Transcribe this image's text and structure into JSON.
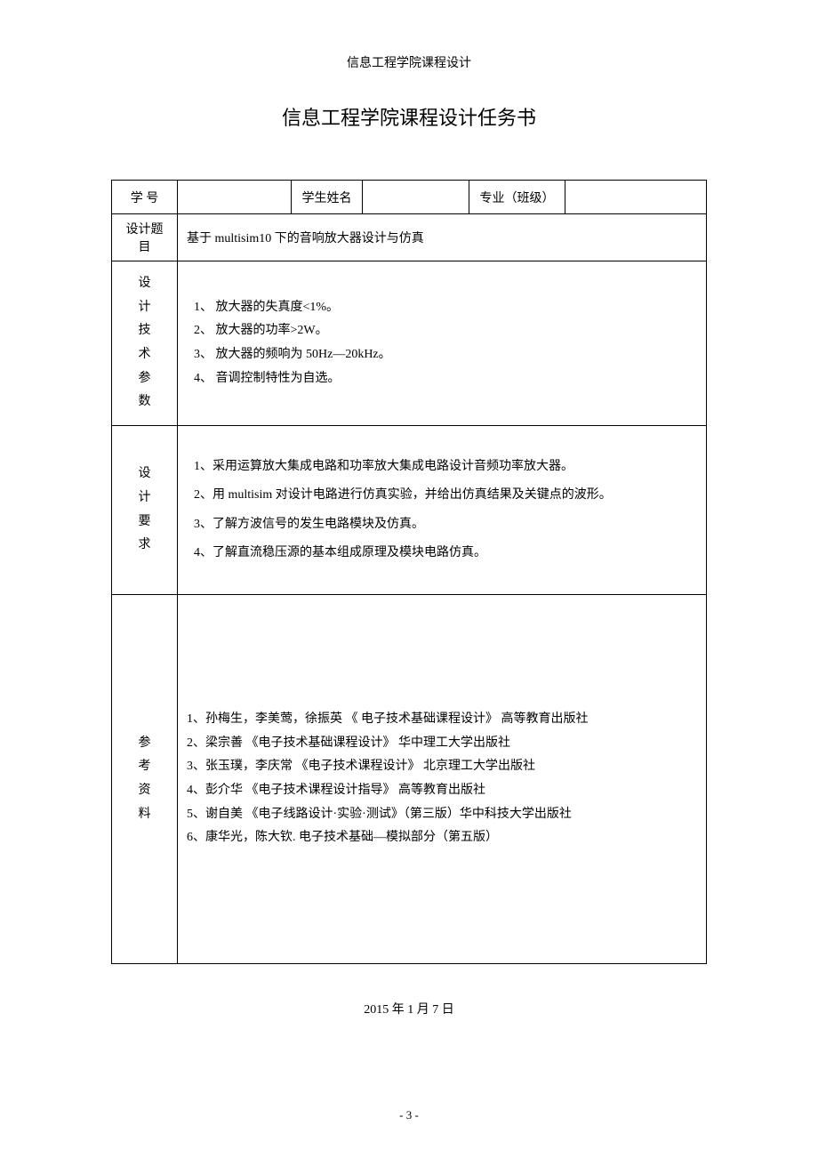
{
  "header_text": "信息工程学院课程设计",
  "title": "信息工程学院课程设计任务书",
  "row1": {
    "student_id_label": "学 号",
    "student_id_value": "",
    "student_name_label": "学生姓名",
    "student_name_value": "",
    "major_class_label": "专业（班级）",
    "major_class_value": ""
  },
  "row2": {
    "design_topic_label": "设计题目",
    "design_topic_value": "基于 multisim10 下的音响放大器设计与仿真"
  },
  "design_params": {
    "label_chars": [
      "设",
      "计",
      "技",
      "术",
      "参",
      "数"
    ],
    "items": [
      "1、 放大器的失真度<1%。",
      "2、 放大器的功率>2W。",
      "3、 放大器的频响为 50Hz—20kHz。",
      "4、 音调控制特性为自选。"
    ]
  },
  "design_requirements": {
    "label_chars": [
      "设",
      "计",
      "要",
      "求"
    ],
    "items": [
      "1、采用运算放大集成电路和功率放大集成电路设计音频功率放大器。",
      "2、用 multisim 对设计电路进行仿真实验，并给出仿真结果及关键点的波形。",
      "3、了解方波信号的发生电路模块及仿真。",
      "4、了解直流稳压源的基本组成原理及模块电路仿真。"
    ]
  },
  "references": {
    "label_chars": [
      "参",
      "考",
      "资",
      "料"
    ],
    "items": [
      "1、孙梅生，李美莺，徐振英 《 电子技术基础课程设计》 高等教育出版社",
      "2、梁宗善 《电子技术基础课程设计》 华中理工大学出版社",
      "3、张玉璞，李庆常 《电子技术课程设计》 北京理工大学出版社",
      "4、彭介华 《电子技术课程设计指导》 高等教育出版社",
      "5、谢自美 《电子线路设计·实验·测试》（第三版）华中科技大学出版社",
      "6、康华光，陈大钦.  电子技术基础—模拟部分（第五版）"
    ]
  },
  "date": "2015 年 1 月 7 日",
  "page_number": "- 3 -"
}
